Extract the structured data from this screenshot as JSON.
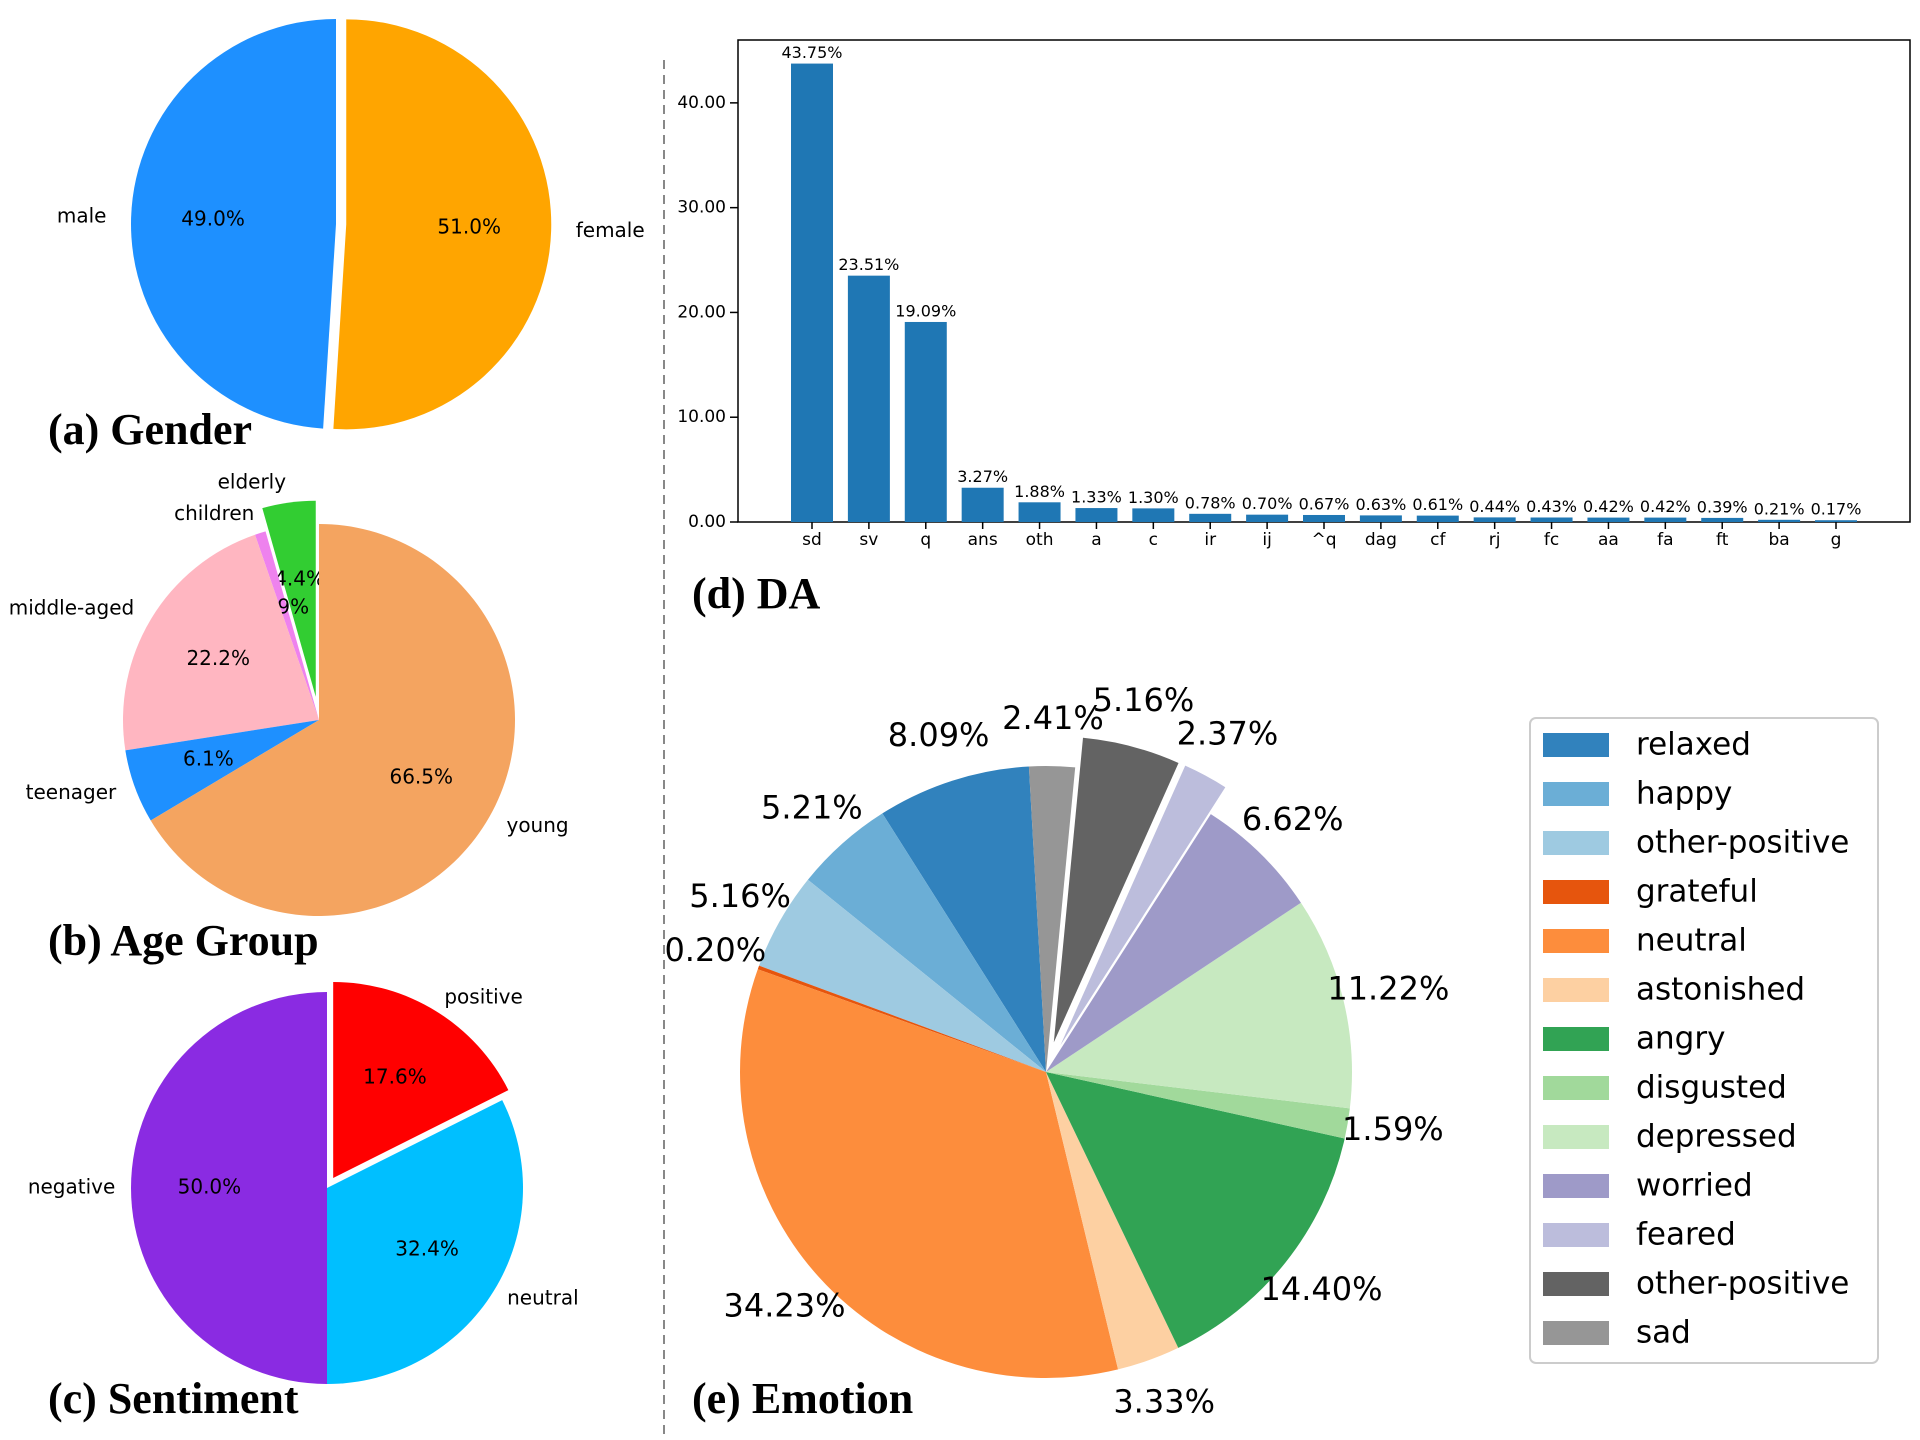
{
  "chart_data": [
    {
      "id": "gender",
      "type": "pie",
      "caption": "(a) Gender",
      "slices": [
        {
          "label": "male",
          "value": 49.0,
          "pct_text": "49.0%",
          "color": "#1e90ff"
        },
        {
          "label": "female",
          "value": 51.0,
          "pct_text": "51.0%",
          "color": "#ffa500",
          "explode": true
        }
      ]
    },
    {
      "id": "age",
      "type": "pie",
      "caption": "(b) Age Group",
      "slices": [
        {
          "label": "elderly",
          "value": 4.4,
          "pct_text": "4.4%",
          "color": "#32cd32",
          "explode": true
        },
        {
          "label": "children",
          "value": 0.9,
          "pct_text": "0.9%",
          "color": "#ee82ee"
        },
        {
          "label": "middle-aged",
          "value": 22.2,
          "pct_text": "22.2%",
          "color": "#ffb6c1"
        },
        {
          "label": "teenager",
          "value": 6.1,
          "pct_text": "6.1%",
          "color": "#1e90ff"
        },
        {
          "label": "young",
          "value": 66.5,
          "pct_text": "66.5%",
          "color": "#f4a460"
        }
      ]
    },
    {
      "id": "sentiment",
      "type": "pie",
      "caption": "(c) Sentiment",
      "slices": [
        {
          "label": "negative",
          "value": 50.0,
          "pct_text": "50.0%",
          "color": "#8a2be2"
        },
        {
          "label": "neutral",
          "value": 32.4,
          "pct_text": "32.4%",
          "color": "#00bfff"
        },
        {
          "label": "positive",
          "value": 17.6,
          "pct_text": "17.6%",
          "color": "#ff0000",
          "explode": true
        }
      ]
    },
    {
      "id": "da",
      "type": "bar",
      "caption": "(d) DA",
      "categories": [
        "sd",
        "sv",
        "q",
        "ans",
        "oth",
        "a",
        "c",
        "ir",
        "ij",
        "^q",
        "dag",
        "cf",
        "rj",
        "fc",
        "aa",
        "fa",
        "ft",
        "ba",
        "g"
      ],
      "values": [
        43.75,
        23.51,
        19.09,
        3.27,
        1.88,
        1.33,
        1.3,
        0.78,
        0.7,
        0.67,
        0.63,
        0.61,
        0.44,
        0.43,
        0.42,
        0.42,
        0.39,
        0.21,
        0.17
      ],
      "value_labels": [
        "43.75%",
        "23.51%",
        "19.09%",
        "3.27%",
        "1.88%",
        "1.33%",
        "1.30%",
        "0.78%",
        "0.70%",
        "0.67%",
        "0.63%",
        "0.61%",
        "0.44%",
        "0.43%",
        "0.42%",
        "0.42%",
        "0.39%",
        "0.21%",
        "0.17%"
      ],
      "yticks": [
        "0.00",
        "10.00",
        "20.00",
        "30.00",
        "40.00"
      ],
      "ytick_values": [
        0,
        10,
        20,
        30,
        40
      ],
      "ylim": [
        0,
        46
      ],
      "bar_color": "#1f77b4"
    },
    {
      "id": "emotion",
      "type": "pie",
      "caption": "(e) Emotion",
      "legend_position": "right",
      "slices": [
        {
          "label": "relaxed",
          "value": 8.09,
          "pct_text": "8.09%",
          "color": "#3182bd"
        },
        {
          "label": "happy",
          "value": 5.21,
          "pct_text": "5.21%",
          "color": "#6baed6"
        },
        {
          "label": "other-positive",
          "value": 5.16,
          "pct_text": "5.16%",
          "color": "#9ecae1"
        },
        {
          "label": "grateful",
          "value": 0.2,
          "pct_text": "0.20%",
          "color": "#e6550d"
        },
        {
          "label": "neutral",
          "value": 34.23,
          "pct_text": "34.23%",
          "color": "#fd8d3c"
        },
        {
          "label": "astonished",
          "value": 3.33,
          "pct_text": "3.33%",
          "color": "#fdd0a2"
        },
        {
          "label": "angry",
          "value": 14.4,
          "pct_text": "14.40%",
          "color": "#31a354"
        },
        {
          "label": "disgusted",
          "value": 1.59,
          "pct_text": "1.59%",
          "color": "#a1d99b"
        },
        {
          "label": "depressed",
          "value": 11.22,
          "pct_text": "11.22%",
          "color": "#c7e9c0"
        },
        {
          "label": "worried",
          "value": 6.62,
          "pct_text": "6.62%",
          "color": "#9e9ac8"
        },
        {
          "label": "feared",
          "value": 2.37,
          "pct_text": "2.37%",
          "color": "#bcbddc",
          "explode": true
        },
        {
          "label": "other-positive",
          "value": 5.16,
          "pct_text": "5.16%",
          "color": "#636363",
          "explode": true
        },
        {
          "label": "sad",
          "value": 2.41,
          "pct_text": "2.41%",
          "color": "#969696"
        }
      ]
    }
  ]
}
